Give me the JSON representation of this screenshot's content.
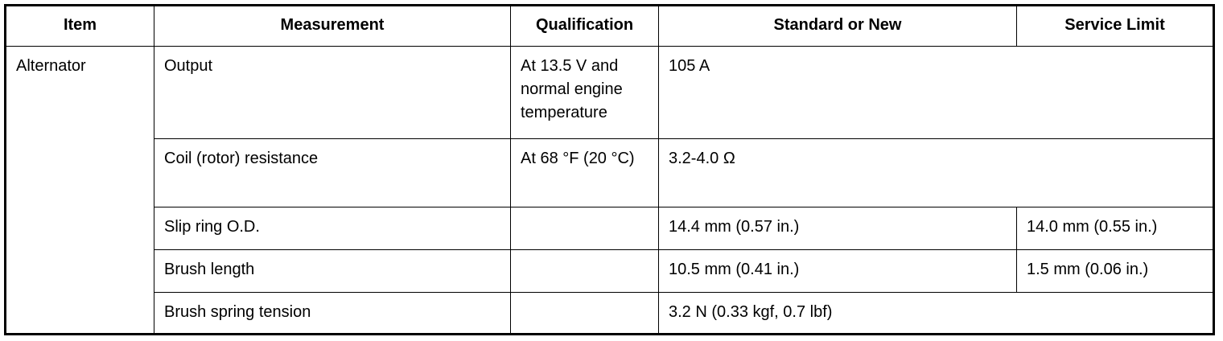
{
  "table": {
    "header": [
      "Item",
      "Measurement",
      "Qualification",
      "Standard or New",
      "Service Limit"
    ],
    "item": "Alternator",
    "rows": [
      {
        "measurement": "Output",
        "qualification": "At 13.5 V and normal engine temperature",
        "standard": "105 A"
      },
      {
        "measurement": "Coil (rotor) resistance",
        "qualification": "At 68 °F (20 °C)",
        "standard": "3.2-4.0 Ω"
      },
      {
        "measurement": "Slip ring O.D.",
        "standard": "14.4 mm (0.57 in.)",
        "limit": "14.0 mm (0.55 in.)"
      },
      {
        "measurement": "Brush length",
        "standard": "10.5 mm (0.41 in.)",
        "limit": "1.5 mm (0.06 in.)"
      },
      {
        "measurement": "Brush spring tension",
        "standard": "3.2 N (0.33 kgf, 0.7 lbf)"
      }
    ]
  }
}
